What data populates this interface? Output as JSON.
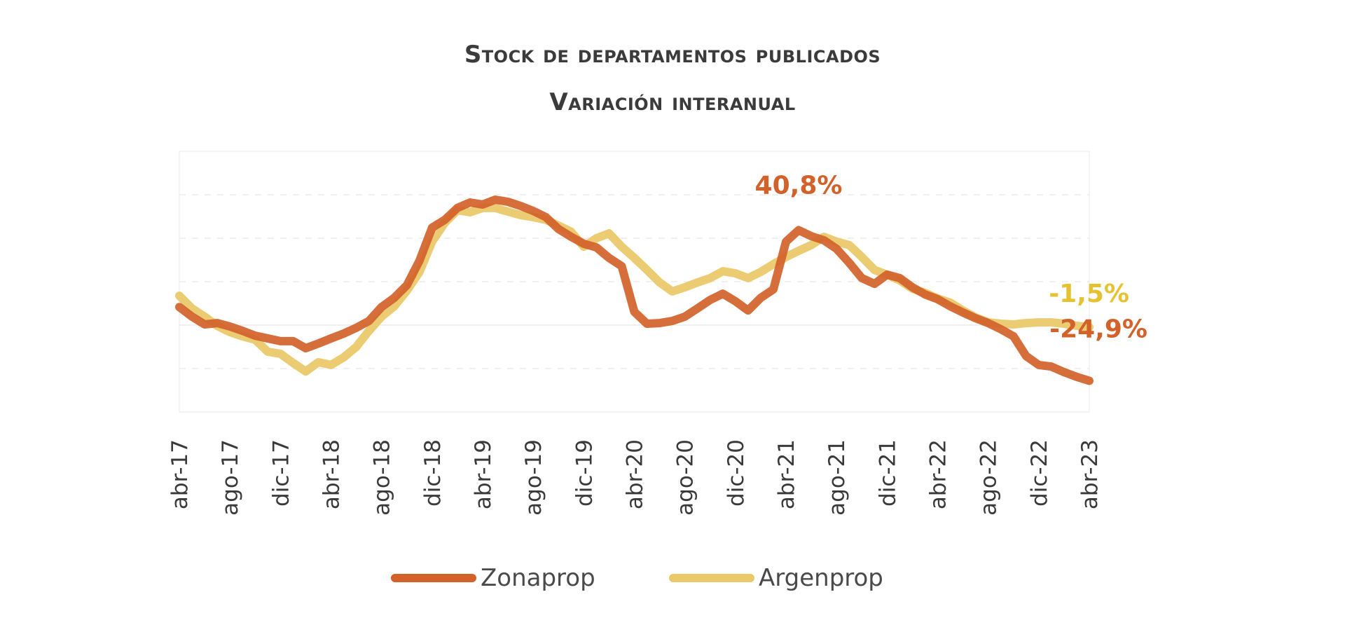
{
  "chart_data": {
    "type": "line",
    "title": "Stock de departamentos  publicados",
    "subtitle": "Variación interanual",
    "xlabel": "",
    "ylabel": "",
    "ylim": [
      -38.5,
      75.2
    ],
    "grid": true,
    "legend_position": "bottom",
    "x_start": "abr-17",
    "x_end": "abr-23",
    "x_tick_labels": [
      "abr-17",
      "ago-17",
      "dic-17",
      "abr-18",
      "ago-18",
      "dic-18",
      "abr-19",
      "ago-19",
      "dic-19",
      "abr-20",
      "ago-20",
      "dic-20",
      "abr-21",
      "ago-21",
      "dic-21",
      "abr-22",
      "ago-22",
      "dic-22",
      "abr-23"
    ],
    "x_tick_every_months": 4,
    "series": [
      {
        "name": "Zonaprop",
        "color": "#D2622A",
        "values": [
          7.3,
          3.1,
          -0.3,
          0.3,
          -1.2,
          -3.1,
          -5.2,
          -6.4,
          -7.6,
          -7.6,
          -10.7,
          -8.6,
          -6.4,
          -4.3,
          -1.8,
          1.2,
          7.3,
          11.3,
          16.8,
          27.5,
          41.9,
          45.3,
          50.5,
          52.9,
          52.0,
          54.1,
          53.2,
          51.4,
          49.2,
          46.5,
          41.3,
          37.9,
          34.9,
          33.3,
          28.7,
          25.1,
          5.2,
          0.0,
          0.3,
          1.2,
          3.1,
          6.7,
          10.4,
          13.1,
          9.8,
          5.8,
          11.3,
          15.0,
          35.8,
          40.8,
          38.2,
          36.4,
          32.7,
          26.6,
          19.9,
          17.4,
          21.4,
          19.9,
          15.9,
          12.8,
          10.7,
          7.6,
          4.9,
          2.4,
          0.3,
          -2.4,
          -5.5,
          -14.1,
          -18.0,
          -18.7,
          -21.1,
          -23.2,
          -24.9
        ]
      },
      {
        "name": "Argenprop",
        "color": "#EBC96A",
        "values": [
          12.2,
          6.7,
          3.1,
          -0.9,
          -3.7,
          -5.5,
          -7.0,
          -12.2,
          -13.1,
          -17.1,
          -20.8,
          -16.8,
          -18.0,
          -14.7,
          -10.1,
          -3.1,
          3.1,
          7.6,
          14.4,
          22.6,
          35.8,
          44.0,
          49.5,
          48.6,
          50.5,
          50.5,
          48.9,
          47.4,
          46.5,
          45.3,
          42.8,
          40.1,
          33.6,
          37.3,
          39.4,
          33.6,
          28.7,
          23.5,
          18.0,
          14.1,
          15.9,
          18.0,
          19.9,
          22.9,
          22.0,
          19.9,
          22.6,
          26.0,
          29.1,
          31.8,
          34.3,
          37.9,
          35.8,
          34.3,
          29.1,
          23.5,
          21.4,
          18.9,
          15.3,
          13.5,
          11.0,
          9.2,
          5.8,
          2.8,
          0.6,
          0.0,
          -0.3,
          0.3,
          0.6,
          0.6,
          0.0,
          -0.9,
          -1.5
        ]
      }
    ],
    "annotations": [
      {
        "text": "40,8%",
        "series": "Zonaprop",
        "month_index": 49,
        "value": 40.8,
        "color": "#D2622A"
      },
      {
        "text": "-1,5%",
        "series": "Argenprop",
        "month_index": 72,
        "value": -1.5,
        "color": "#E5C232"
      },
      {
        "text": "-24,9%",
        "series": "Zonaprop",
        "month_index": 72,
        "value": -24.9,
        "color": "#D2622A"
      }
    ]
  }
}
